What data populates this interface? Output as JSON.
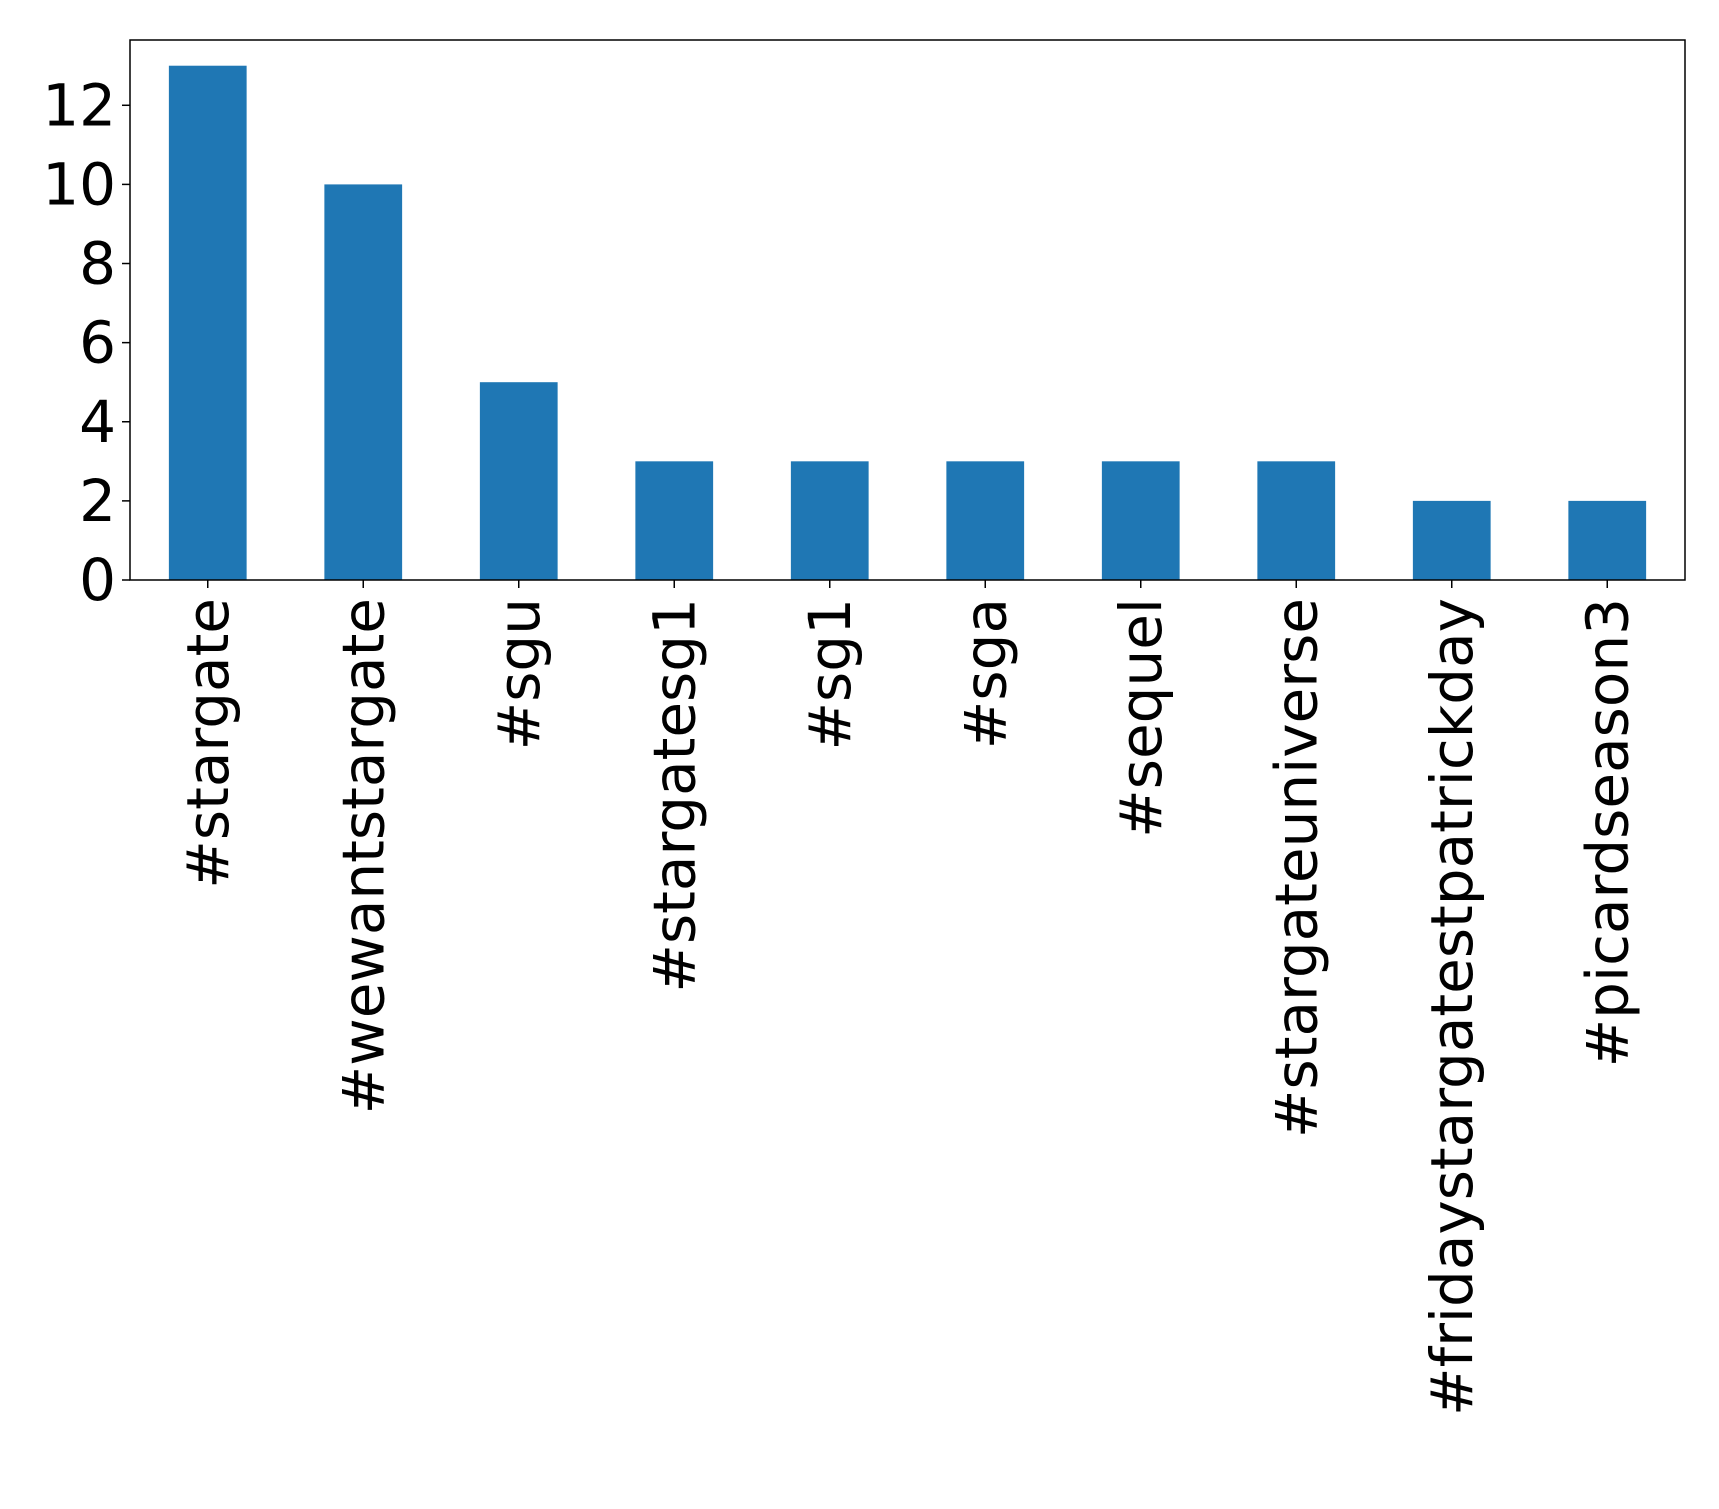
{
  "chart_data": {
    "type": "bar",
    "categories": [
      "#stargate",
      "#wewantstargate",
      "#sgu",
      "#stargatesg1",
      "#sg1",
      "#sga",
      "#sequel",
      "#stargateuniverse",
      "#fridaystargatestpatrickday",
      "#picardseason3"
    ],
    "values": [
      13,
      10,
      5,
      3,
      3,
      3,
      3,
      3,
      2,
      2
    ],
    "title": "",
    "xlabel": "",
    "ylabel": "",
    "ylim": [
      0,
      13.65
    ],
    "yticks": [
      0,
      2,
      4,
      6,
      8,
      10,
      12
    ],
    "bar_color": "#1f77b4",
    "grid": false,
    "legend": "none",
    "x_tick_rotation": "vertical"
  }
}
